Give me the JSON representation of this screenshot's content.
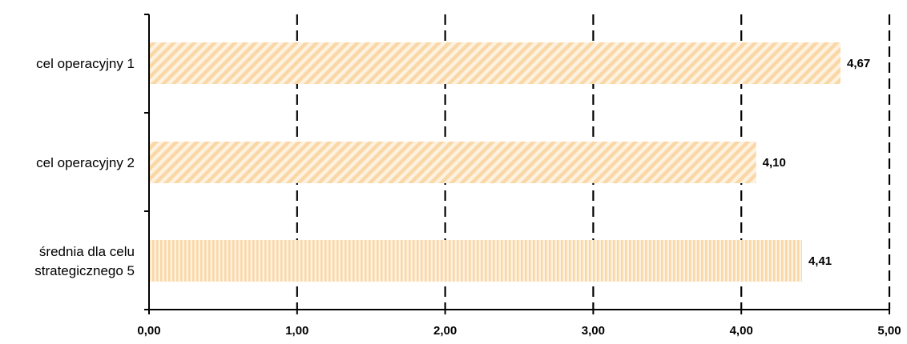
{
  "chart_data": {
    "type": "bar",
    "orientation": "horizontal",
    "categories": [
      [
        "cel operacyjny 1"
      ],
      [
        "cel operacyjny 2"
      ],
      [
        "średnia dla celu",
        "strategicznego 5"
      ]
    ],
    "values": [
      4.67,
      4.1,
      4.41
    ],
    "value_labels": [
      "4,67",
      "4,10",
      "4,41"
    ],
    "bar_patterns": [
      "diagonal-hatch",
      "diagonal-hatch",
      "vertical-stripes"
    ],
    "xlim": [
      0,
      5
    ],
    "x_ticks": [
      0,
      1,
      2,
      3,
      4,
      5
    ],
    "x_tick_labels": [
      "0,00",
      "1,00",
      "2,00",
      "3,00",
      "4,00",
      "5,00"
    ],
    "grid": "vertical dashed",
    "legend": "none",
    "colors": {
      "bar_fill": "#fad7a6",
      "bar_background": "#fdf1df",
      "axis": "#000000",
      "grid": "#000000"
    }
  }
}
